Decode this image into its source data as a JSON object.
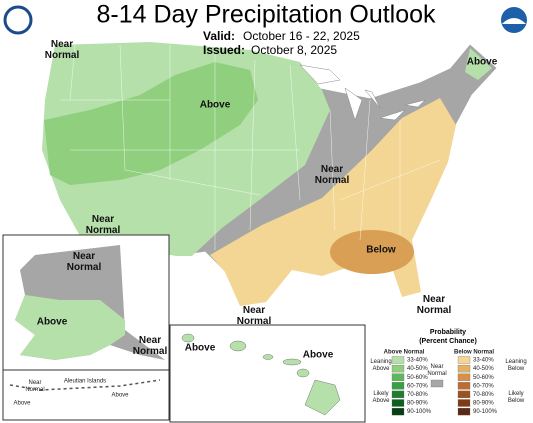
{
  "header": {
    "title": "8-14 Day Precipitation Outlook",
    "valid_label": "Valid:",
    "valid": "October 16 - 22, 2025",
    "issued_label": "Issued:",
    "issued": "October 8, 2025"
  },
  "map_labels": [
    {
      "lines": [
        "Near",
        "Normal"
      ]
    },
    {
      "lines": [
        "Above"
      ]
    },
    {
      "lines": [
        "Above"
      ]
    },
    {
      "lines": [
        "Near",
        "Normal"
      ]
    },
    {
      "lines": [
        "Near",
        "Normal"
      ]
    },
    {
      "lines": [
        "Below"
      ]
    },
    {
      "lines": [
        "Near",
        "Normal"
      ]
    },
    {
      "lines": [
        "Above"
      ]
    },
    {
      "lines": [
        "Near",
        "Normal"
      ]
    },
    {
      "lines": [
        "Near",
        "Normal"
      ]
    },
    {
      "lines": [
        "Near",
        "Normal"
      ]
    },
    {
      "lines": [
        "Above"
      ]
    },
    {
      "lines": [
        "Above"
      ]
    },
    {
      "lines": [
        "Near",
        "Normal"
      ]
    },
    {
      "lines": [
        "Above"
      ]
    },
    {
      "lines": [
        "Aleutian Islands"
      ]
    },
    {
      "lines": [
        "Above"
      ]
    }
  ],
  "legend": {
    "title": "Probability",
    "subtitle": "(Percent Chance)",
    "above": {
      "heading": "Above Normal",
      "bins": [
        "33-40%",
        "40-50%",
        "50-60%",
        "60-70%",
        "70-80%",
        "80-90%",
        "90-100%"
      ],
      "colors": [
        "#b5e0aa",
        "#8fcf7e",
        "#5cb85a",
        "#37a040",
        "#1e7f2e",
        "#0e5e1f",
        "#063f13"
      ],
      "leaning": [
        "Leaning",
        "Above"
      ],
      "likely": [
        "Likely",
        "Above"
      ]
    },
    "near": {
      "lines": [
        "Near",
        "Normal"
      ],
      "color": "#a6a6a6"
    },
    "below": {
      "heading": "Below Normal",
      "bins": [
        "33-40%",
        "40-50%",
        "50-60%",
        "60-70%",
        "70-80%",
        "80-90%",
        "90-100%"
      ],
      "colors": [
        "#f3d594",
        "#e3b068",
        "#d4914a",
        "#bd6d2f",
        "#9f5020",
        "#7e3a16",
        "#5b2810"
      ],
      "leaning": [
        "Leaning",
        "Below"
      ],
      "likely": [
        "Likely",
        "Below"
      ]
    }
  }
}
